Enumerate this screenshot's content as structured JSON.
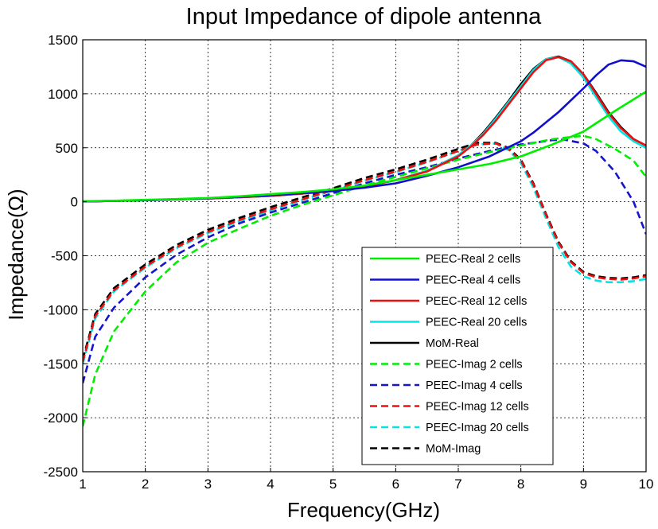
{
  "chart_data": {
    "type": "line",
    "title": "Input Impedance of dipole antenna",
    "xlabel": "Frequency(GHz)",
    "ylabel": "Impedance(Ω)",
    "xlim": [
      1,
      10
    ],
    "ylim": [
      -2500,
      1500
    ],
    "xticks": [
      1,
      2,
      3,
      4,
      5,
      6,
      7,
      8,
      9,
      10
    ],
    "yticks": [
      -2500,
      -2000,
      -1500,
      -1000,
      -500,
      0,
      500,
      1000,
      1500
    ],
    "grid": true,
    "legend_position": "lower-right",
    "series": [
      {
        "name": "PEEC-Real 2 cells",
        "color": "#00ee00",
        "dash": "solid",
        "x": [
          1,
          1.5,
          2,
          2.5,
          3,
          3.5,
          4,
          4.5,
          5,
          5.5,
          6,
          6.5,
          7,
          7.5,
          8,
          8.5,
          9,
          9.5,
          10
        ],
        "y": [
          5,
          10,
          18,
          25,
          35,
          50,
          70,
          90,
          115,
          150,
          200,
          250,
          300,
          350,
          420,
          530,
          650,
          840,
          1020
        ]
      },
      {
        "name": "PEEC-Real 4 cells",
        "color": "#1010cc",
        "dash": "solid",
        "x": [
          1,
          1.5,
          2,
          2.5,
          3,
          3.5,
          4,
          4.5,
          5,
          5.5,
          6,
          6.5,
          7,
          7.5,
          8,
          8.2,
          8.6,
          9,
          9.2,
          9.4,
          9.6,
          9.8,
          10
        ],
        "y": [
          3,
          8,
          15,
          22,
          32,
          45,
          60,
          80,
          100,
          130,
          170,
          240,
          320,
          420,
          560,
          640,
          830,
          1050,
          1170,
          1270,
          1310,
          1300,
          1250
        ]
      },
      {
        "name": "PEEC-Real 12 cells",
        "color": "#ee1010",
        "dash": "solid",
        "x": [
          1,
          1.5,
          2,
          2.5,
          3,
          3.5,
          4,
          4.5,
          5,
          5.5,
          6,
          6.5,
          7,
          7.2,
          7.4,
          7.6,
          7.8,
          8,
          8.2,
          8.4,
          8.6,
          8.8,
          9,
          9.2,
          9.4,
          9.6,
          9.8,
          10
        ],
        "y": [
          3,
          8,
          14,
          22,
          30,
          42,
          55,
          75,
          100,
          140,
          200,
          280,
          420,
          510,
          620,
          750,
          900,
          1050,
          1200,
          1310,
          1340,
          1300,
          1180,
          1000,
          820,
          680,
          580,
          520
        ]
      },
      {
        "name": "PEEC-Real 20 cells",
        "color": "#00e6e6",
        "dash": "solid",
        "x": [
          1,
          1.5,
          2,
          2.5,
          3,
          3.5,
          4,
          4.5,
          5,
          5.5,
          6,
          6.5,
          7,
          7.2,
          7.4,
          7.6,
          7.8,
          8,
          8.2,
          8.4,
          8.6,
          8.8,
          9,
          9.2,
          9.4,
          9.6,
          9.8,
          10
        ],
        "y": [
          3,
          8,
          14,
          22,
          30,
          42,
          55,
          75,
          100,
          140,
          200,
          285,
          430,
          520,
          630,
          770,
          920,
          1070,
          1220,
          1320,
          1340,
          1280,
          1150,
          970,
          790,
          650,
          560,
          500
        ]
      },
      {
        "name": "MoM-Real",
        "color": "#000000",
        "dash": "solid",
        "x": [
          1,
          1.5,
          2,
          2.5,
          3,
          3.5,
          4,
          4.5,
          5,
          5.5,
          6,
          6.5,
          7,
          7.2,
          7.4,
          7.6,
          7.8,
          8,
          8.2,
          8.4,
          8.6,
          8.8,
          9,
          9.2,
          9.4,
          9.6,
          9.8,
          10
        ],
        "y": [
          3,
          8,
          14,
          22,
          30,
          42,
          55,
          75,
          100,
          140,
          200,
          285,
          430,
          520,
          640,
          780,
          930,
          1090,
          1230,
          1320,
          1345,
          1300,
          1180,
          1010,
          830,
          690,
          580,
          520
        ]
      },
      {
        "name": "PEEC-Imag 2 cells",
        "color": "#00ee00",
        "dash": "dashed",
        "x": [
          1,
          1.2,
          1.5,
          2,
          2.5,
          3,
          3.5,
          4,
          4.5,
          5,
          5.5,
          6,
          6.5,
          7,
          7.5,
          8,
          8.5,
          8.8,
          9,
          9.2,
          9.5,
          9.8,
          10
        ],
        "y": [
          -2080,
          -1600,
          -1200,
          -830,
          -560,
          -380,
          -250,
          -130,
          -30,
          60,
          150,
          230,
          310,
          390,
          460,
          520,
          580,
          600,
          610,
          580,
          490,
          380,
          230
        ]
      },
      {
        "name": "PEEC-Imag 4 cells",
        "color": "#1515cc",
        "dash": "dashed",
        "x": [
          1,
          1.2,
          1.5,
          2,
          2.5,
          3,
          3.5,
          4,
          4.5,
          5,
          5.5,
          6,
          6.5,
          7,
          7.5,
          8,
          8.5,
          8.7,
          9,
          9.2,
          9.5,
          9.8,
          10
        ],
        "y": [
          -1680,
          -1250,
          -980,
          -700,
          -490,
          -330,
          -200,
          -100,
          -10,
          80,
          170,
          250,
          320,
          400,
          470,
          530,
          570,
          575,
          540,
          470,
          280,
          0,
          -300
        ]
      },
      {
        "name": "PEEC-Imag 12 cells",
        "color": "#ee1010",
        "dash": "dashed",
        "x": [
          1,
          1.2,
          1.5,
          2,
          2.5,
          3,
          3.5,
          4,
          4.5,
          5,
          5.5,
          6,
          6.5,
          7,
          7.3,
          7.6,
          7.8,
          8,
          8.2,
          8.4,
          8.6,
          8.8,
          9,
          9.2,
          9.4,
          9.6,
          9.8,
          10
        ],
        "y": [
          -1480,
          -1060,
          -820,
          -600,
          -420,
          -280,
          -170,
          -70,
          20,
          110,
          200,
          280,
          370,
          470,
          530,
          540,
          490,
          380,
          160,
          -120,
          -380,
          -560,
          -660,
          -700,
          -715,
          -720,
          -710,
          -690
        ]
      },
      {
        "name": "PEEC-Imag 20 cells",
        "color": "#00e6e6",
        "dash": "dashed",
        "x": [
          1,
          1.2,
          1.5,
          2,
          2.5,
          3,
          3.5,
          4,
          4.5,
          5,
          5.5,
          6,
          6.5,
          7,
          7.3,
          7.6,
          7.8,
          8,
          8.2,
          8.4,
          8.6,
          8.8,
          9,
          9.2,
          9.4,
          9.6,
          9.8,
          10
        ],
        "y": [
          -1500,
          -1080,
          -830,
          -610,
          -430,
          -290,
          -180,
          -80,
          15,
          105,
          195,
          275,
          365,
          470,
          530,
          540,
          480,
          360,
          130,
          -150,
          -420,
          -600,
          -690,
          -730,
          -745,
          -745,
          -735,
          -715
        ]
      },
      {
        "name": "MoM-Imag",
        "color": "#000000",
        "dash": "dashed",
        "x": [
          1,
          1.2,
          1.5,
          2,
          2.5,
          3,
          3.5,
          4,
          4.5,
          5,
          5.5,
          6,
          6.5,
          7,
          7.3,
          7.6,
          7.8,
          8,
          8.2,
          8.4,
          8.6,
          8.8,
          9,
          9.2,
          9.4,
          9.6,
          9.8,
          10
        ],
        "y": [
          -1460,
          -1040,
          -800,
          -580,
          -400,
          -260,
          -150,
          -50,
          40,
          125,
          220,
          300,
          390,
          490,
          545,
          545,
          500,
          390,
          170,
          -110,
          -370,
          -550,
          -650,
          -690,
          -705,
          -710,
          -700,
          -680
        ]
      }
    ]
  }
}
